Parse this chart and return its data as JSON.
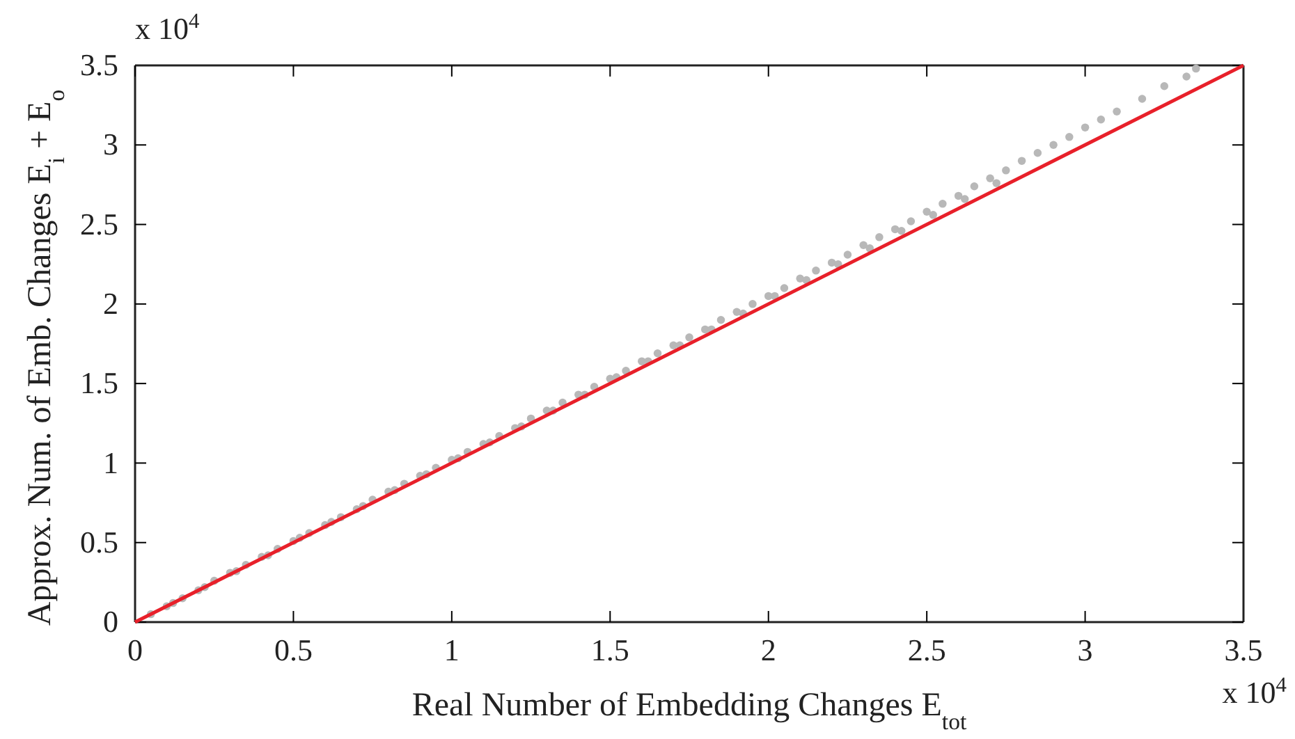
{
  "chart_data": {
    "type": "scatter",
    "xlabel": "Real Number of Embedding Changes E$_{tot}$",
    "ylabel": "Approx. Num. of Emb. Changes E$_{i}$ + E$_{o}$",
    "annotations": [
      "x 10$^{4}$",
      "x 10$^{4}$"
    ],
    "xlim": [
      0,
      3.5
    ],
    "ylim": [
      0,
      3.5
    ],
    "xticks": [
      0,
      0.5,
      1,
      1.5,
      2,
      2.5,
      3,
      3.5
    ],
    "yticks": [
      0,
      0.5,
      1,
      1.5,
      2,
      2.5,
      3,
      3.5
    ],
    "grid": false,
    "series": [
      {
        "color": "#b8b8b8",
        "marker": "circle",
        "x": [
          0.05,
          0.1,
          0.15,
          0.2,
          0.25,
          0.3,
          0.35,
          0.4,
          0.45,
          0.5,
          0.55,
          0.6,
          0.65,
          0.7,
          0.75,
          0.8,
          0.85,
          0.9,
          0.95,
          1.0,
          1.05,
          1.1,
          1.15,
          1.2,
          1.25,
          1.3,
          1.35,
          1.4,
          1.45,
          1.5,
          1.55,
          1.6,
          1.65,
          1.7,
          1.75,
          1.8,
          1.85,
          1.9,
          1.95,
          2.0,
          2.05,
          2.1,
          2.15,
          2.2,
          2.25,
          2.3,
          2.35,
          2.4,
          2.45,
          2.5,
          2.55,
          2.6,
          2.65,
          2.7,
          2.75,
          2.8,
          2.85,
          2.9,
          2.95,
          3.0,
          3.05,
          3.1,
          3.18,
          3.25,
          3.32,
          3.35,
          0.12,
          0.22,
          0.32,
          0.42,
          0.52,
          0.62,
          0.72,
          0.82,
          0.92,
          1.02,
          1.12,
          1.22,
          1.32,
          1.42,
          1.52,
          1.62,
          1.72,
          1.82,
          1.92,
          2.02,
          2.12,
          2.22,
          2.32,
          2.42,
          2.52,
          2.62,
          2.72
        ],
        "values": [
          0.05,
          0.1,
          0.15,
          0.2,
          0.26,
          0.31,
          0.36,
          0.41,
          0.46,
          0.51,
          0.56,
          0.61,
          0.66,
          0.71,
          0.77,
          0.82,
          0.87,
          0.92,
          0.97,
          1.02,
          1.07,
          1.12,
          1.17,
          1.22,
          1.28,
          1.33,
          1.38,
          1.43,
          1.48,
          1.53,
          1.58,
          1.64,
          1.69,
          1.74,
          1.79,
          1.84,
          1.9,
          1.95,
          2.0,
          2.05,
          2.1,
          2.16,
          2.21,
          2.26,
          2.31,
          2.37,
          2.42,
          2.47,
          2.52,
          2.58,
          2.63,
          2.68,
          2.74,
          2.79,
          2.84,
          2.9,
          2.95,
          3.0,
          3.05,
          3.11,
          3.16,
          3.21,
          3.29,
          3.37,
          3.43,
          3.48,
          0.12,
          0.22,
          0.32,
          0.42,
          0.53,
          0.63,
          0.73,
          0.83,
          0.93,
          1.03,
          1.13,
          1.23,
          1.33,
          1.43,
          1.54,
          1.64,
          1.74,
          1.84,
          1.94,
          2.05,
          2.15,
          2.25,
          2.35,
          2.46,
          2.56,
          2.66,
          2.76
        ]
      },
      {
        "type": "line",
        "color": "#e8202a",
        "x": [
          0,
          3.5
        ],
        "values": [
          0,
          3.5
        ]
      }
    ]
  }
}
